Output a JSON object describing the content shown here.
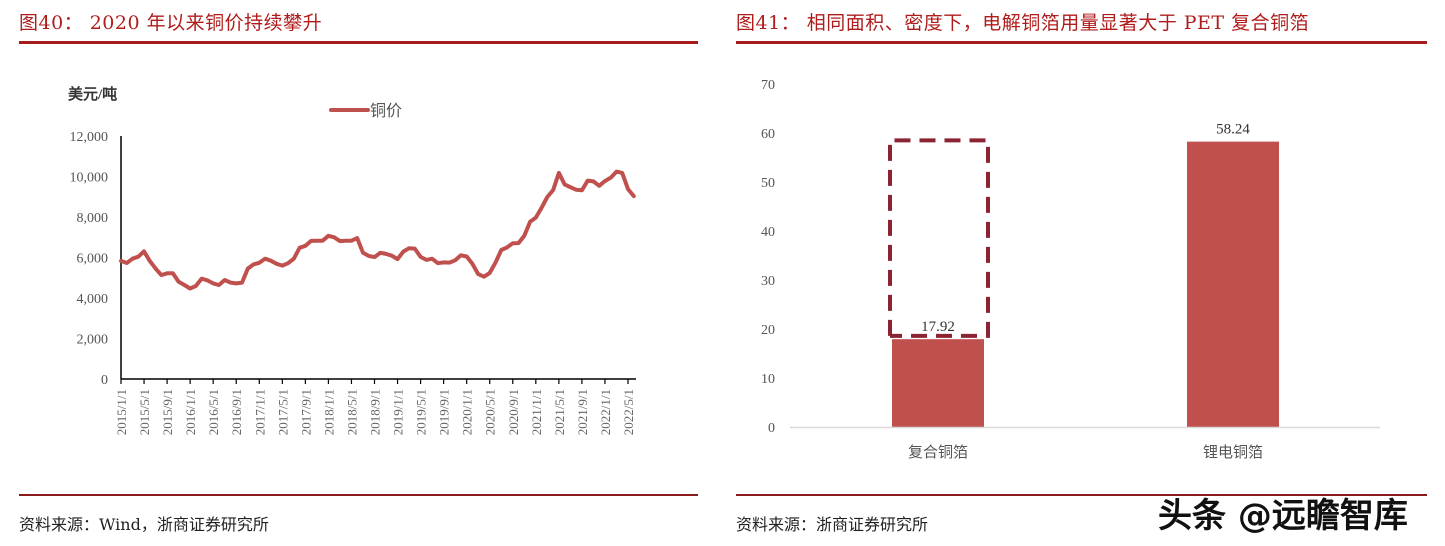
{
  "left_figure": {
    "title": "图40： 2020 年以来铜价持续攀升",
    "y_unit": "美元/吨",
    "legend": "铜价",
    "source": "资料来源：Wind，浙商证券研究所"
  },
  "right_figure": {
    "title": "图41： 相同面积、密度下，电解铜箔用量显著大于 PET 复合铜箔",
    "source": "资料来源：浙商证券研究所"
  },
  "watermark": "头条 @远瞻智库",
  "colors": {
    "title_red": "#b01c1c",
    "rule_red": "#a61b1b",
    "series_red": "#c0504d",
    "dashed_box": "#8b2332"
  },
  "chart_data": [
    {
      "type": "line",
      "title": "2020 年以来铜价持续攀升",
      "ylabel": "美元/吨",
      "ylim": [
        0,
        12000
      ],
      "yticks": [
        "0",
        "2,000",
        "4,000",
        "6,000",
        "8,000",
        "10,000",
        "12,000"
      ],
      "xtick_labels": [
        "2015/1/1",
        "2015/5/1",
        "2015/9/1",
        "2016/1/1",
        "2016/5/1",
        "2016/9/1",
        "2017/1/1",
        "2017/5/1",
        "2017/9/1",
        "2018/1/1",
        "2018/5/1",
        "2018/9/1",
        "2019/1/1",
        "2019/5/1",
        "2019/9/1",
        "2020/1/1",
        "2020/5/1",
        "2020/9/1",
        "2021/1/1",
        "2021/5/1",
        "2021/9/1",
        "2022/1/1",
        "2022/5/1"
      ],
      "legend": [
        "铜价"
      ],
      "grid": false,
      "series": [
        {
          "name": "铜价",
          "x": [
            "2015/1",
            "2015/2",
            "2015/3",
            "2015/4",
            "2015/5",
            "2015/6",
            "2015/7",
            "2015/8",
            "2015/9",
            "2015/10",
            "2015/11",
            "2015/12",
            "2016/1",
            "2016/2",
            "2016/3",
            "2016/4",
            "2016/5",
            "2016/6",
            "2016/7",
            "2016/8",
            "2016/9",
            "2016/10",
            "2016/11",
            "2016/12",
            "2017/1",
            "2017/2",
            "2017/3",
            "2017/4",
            "2017/5",
            "2017/6",
            "2017/7",
            "2017/8",
            "2017/9",
            "2017/10",
            "2017/11",
            "2017/12",
            "2018/1",
            "2018/2",
            "2018/3",
            "2018/4",
            "2018/5",
            "2018/6",
            "2018/7",
            "2018/8",
            "2018/9",
            "2018/10",
            "2018/11",
            "2018/12",
            "2019/1",
            "2019/2",
            "2019/3",
            "2019/4",
            "2019/5",
            "2019/6",
            "2019/7",
            "2019/8",
            "2019/9",
            "2019/10",
            "2019/11",
            "2019/12",
            "2020/1",
            "2020/2",
            "2020/3",
            "2020/4",
            "2020/5",
            "2020/6",
            "2020/7",
            "2020/8",
            "2020/9",
            "2020/10",
            "2020/11",
            "2020/12",
            "2021/1",
            "2021/2",
            "2021/3",
            "2021/4",
            "2021/5",
            "2021/6",
            "2021/7",
            "2021/8",
            "2021/9",
            "2021/10",
            "2021/11",
            "2021/12",
            "2022/1",
            "2022/2",
            "2022/3",
            "2022/4",
            "2022/5",
            "2022/6"
          ],
          "values": [
            5830,
            5730,
            5940,
            6040,
            6300,
            5830,
            5450,
            5130,
            5220,
            5220,
            4800,
            4640,
            4470,
            4600,
            4960,
            4870,
            4720,
            4640,
            4890,
            4760,
            4720,
            4760,
            5450,
            5660,
            5740,
            5940,
            5840,
            5690,
            5600,
            5720,
            5940,
            6480,
            6580,
            6820,
            6830,
            6830,
            7070,
            7000,
            6810,
            6830,
            6830,
            6960,
            6230,
            6080,
            6020,
            6230,
            6180,
            6090,
            5920,
            6290,
            6460,
            6440,
            6030,
            5880,
            5940,
            5720,
            5760,
            5750,
            5860,
            6110,
            6050,
            5690,
            5180,
            5050,
            5240,
            5750,
            6370,
            6500,
            6700,
            6710,
            7070,
            7770,
            7970,
            8460,
            8990,
            9330,
            10180,
            9610,
            9470,
            9350,
            9320,
            9800,
            9760,
            9540,
            9780,
            9940,
            10240,
            10180,
            9380,
            9030
          ]
        }
      ]
    },
    {
      "type": "bar",
      "title": "相同面积、密度下，电解铜箔用量显著大于 PET 复合铜箔",
      "categories": [
        "复合铜箔",
        "锂电铜箔"
      ],
      "values": [
        17.92,
        58.24
      ],
      "data_labels": [
        "17.92",
        "58.24"
      ],
      "ylim": [
        0,
        70
      ],
      "yticks": [
        "0",
        "10",
        "20",
        "30",
        "40",
        "50",
        "60",
        "70"
      ],
      "annotations": [
        "dashed outline above 复合铜箔 bar from ~18.5 to ~58.5 indicating the 58.24 reference level"
      ],
      "grid": false
    }
  ]
}
